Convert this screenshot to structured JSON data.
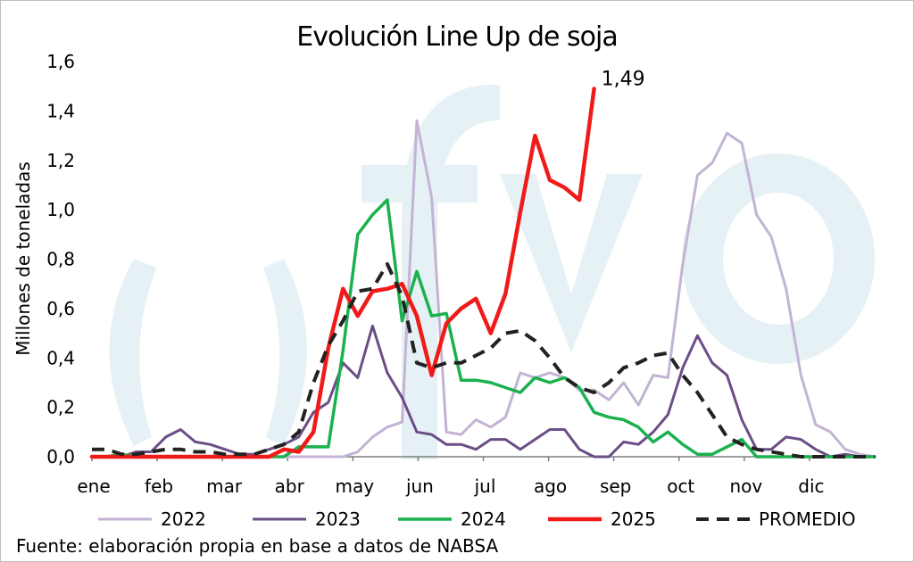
{
  "chart_data": {
    "type": "line",
    "title": "Evolución Line Up de soja",
    "ylabel": "Millones de toneladas",
    "xlabel": "",
    "source": "Fuente: elaboración propia en base a datos de NABSA",
    "ylim": [
      0,
      1.6
    ],
    "yticks": [
      "0,0",
      "0,2",
      "0,4",
      "0,6",
      "0,8",
      "1,0",
      "1,2",
      "1,4",
      "1,6"
    ],
    "months": [
      "ene",
      "feb",
      "mar",
      "abr",
      "may",
      "jun",
      "jul",
      "ago",
      "sep",
      "oct",
      "nov",
      "dic"
    ],
    "annotation": {
      "text": "1,49",
      "series": "2025"
    },
    "legend_position": "bottom",
    "grid": false,
    "series": [
      {
        "name": "2022",
        "color": "#c3b3d4",
        "dash": false,
        "points": [
          [
            0,
            0
          ],
          [
            1,
            0
          ],
          [
            2,
            0
          ],
          [
            3,
            0
          ],
          [
            4,
            0
          ],
          [
            5,
            0
          ],
          [
            6,
            0
          ],
          [
            7,
            0
          ],
          [
            8,
            0
          ],
          [
            9,
            0
          ],
          [
            10,
            0
          ],
          [
            11,
            0
          ],
          [
            12,
            0
          ],
          [
            13,
            0
          ],
          [
            14,
            0
          ],
          [
            15,
            0
          ],
          [
            16,
            0
          ],
          [
            17,
            0
          ],
          [
            18,
            0.02
          ],
          [
            19,
            0.08
          ],
          [
            20,
            0.12
          ],
          [
            21,
            0.14
          ],
          [
            22,
            1.36
          ],
          [
            23,
            1.05
          ],
          [
            24,
            0.1
          ],
          [
            25,
            0.09
          ],
          [
            26,
            0.15
          ],
          [
            27,
            0.12
          ],
          [
            28,
            0.16
          ],
          [
            29,
            0.34
          ],
          [
            30,
            0.32
          ],
          [
            31,
            0.34
          ],
          [
            32,
            0.32
          ],
          [
            33,
            0.27
          ],
          [
            34,
            0.27
          ],
          [
            35,
            0.23
          ],
          [
            36,
            0.3
          ],
          [
            37,
            0.21
          ],
          [
            38,
            0.33
          ],
          [
            39,
            0.32
          ],
          [
            40,
            0.78
          ],
          [
            41,
            1.14
          ],
          [
            42,
            1.19
          ],
          [
            43,
            1.31
          ],
          [
            44,
            1.27
          ],
          [
            45,
            0.98
          ],
          [
            46,
            0.89
          ],
          [
            47,
            0.68
          ],
          [
            48,
            0.33
          ],
          [
            49,
            0.13
          ],
          [
            50,
            0.1
          ],
          [
            51,
            0.03
          ],
          [
            52,
            0.01
          ],
          [
            53,
            0
          ]
        ]
      },
      {
        "name": "2023",
        "color": "#6b4e86",
        "dash": false,
        "points": [
          [
            0,
            0
          ],
          [
            1,
            0
          ],
          [
            2,
            0
          ],
          [
            3,
            0.02
          ],
          [
            4,
            0.02
          ],
          [
            5,
            0.08
          ],
          [
            6,
            0.11
          ],
          [
            7,
            0.06
          ],
          [
            8,
            0.05
          ],
          [
            9,
            0.03
          ],
          [
            10,
            0.01
          ],
          [
            11,
            0.01
          ],
          [
            12,
            0.03
          ],
          [
            13,
            0.05
          ],
          [
            14,
            0.08
          ],
          [
            15,
            0.18
          ],
          [
            16,
            0.22
          ],
          [
            17,
            0.38
          ],
          [
            18,
            0.32
          ],
          [
            19,
            0.53
          ],
          [
            20,
            0.34
          ],
          [
            21,
            0.24
          ],
          [
            22,
            0.1
          ],
          [
            23,
            0.09
          ],
          [
            24,
            0.05
          ],
          [
            25,
            0.05
          ],
          [
            26,
            0.03
          ],
          [
            27,
            0.07
          ],
          [
            28,
            0.07
          ],
          [
            29,
            0.03
          ],
          [
            30,
            0.07
          ],
          [
            31,
            0.11
          ],
          [
            32,
            0.11
          ],
          [
            33,
            0.03
          ],
          [
            34,
            0
          ],
          [
            35,
            0
          ],
          [
            36,
            0.06
          ],
          [
            37,
            0.05
          ],
          [
            38,
            0.1
          ],
          [
            39,
            0.17
          ],
          [
            40,
            0.36
          ],
          [
            41,
            0.49
          ],
          [
            42,
            0.38
          ],
          [
            43,
            0.33
          ],
          [
            44,
            0.15
          ],
          [
            45,
            0.03
          ],
          [
            46,
            0.03
          ],
          [
            47,
            0.08
          ],
          [
            48,
            0.07
          ],
          [
            49,
            0.03
          ],
          [
            50,
            0
          ],
          [
            51,
            0.01
          ],
          [
            52,
            0
          ],
          [
            53,
            0
          ]
        ]
      },
      {
        "name": "2024",
        "color": "#1ab14e",
        "dash": false,
        "points": [
          [
            0,
            0
          ],
          [
            1,
            0
          ],
          [
            2,
            0.01
          ],
          [
            3,
            0
          ],
          [
            4,
            0
          ],
          [
            5,
            0
          ],
          [
            6,
            0
          ],
          [
            7,
            0
          ],
          [
            8,
            0
          ],
          [
            9,
            0
          ],
          [
            10,
            0
          ],
          [
            11,
            0
          ],
          [
            12,
            0
          ],
          [
            13,
            0
          ],
          [
            14,
            0.04
          ],
          [
            15,
            0.04
          ],
          [
            16,
            0.04
          ],
          [
            17,
            0.43
          ],
          [
            18,
            0.9
          ],
          [
            19,
            0.98
          ],
          [
            20,
            1.04
          ],
          [
            21,
            0.55
          ],
          [
            22,
            0.75
          ],
          [
            23,
            0.57
          ],
          [
            24,
            0.58
          ],
          [
            25,
            0.31
          ],
          [
            26,
            0.31
          ],
          [
            27,
            0.3
          ],
          [
            28,
            0.28
          ],
          [
            29,
            0.26
          ],
          [
            30,
            0.32
          ],
          [
            31,
            0.3
          ],
          [
            32,
            0.32
          ],
          [
            33,
            0.28
          ],
          [
            34,
            0.18
          ],
          [
            35,
            0.16
          ],
          [
            36,
            0.15
          ],
          [
            37,
            0.12
          ],
          [
            38,
            0.06
          ],
          [
            39,
            0.1
          ],
          [
            40,
            0.05
          ],
          [
            41,
            0.01
          ],
          [
            42,
            0.01
          ],
          [
            43,
            0.04
          ],
          [
            44,
            0.07
          ],
          [
            45,
            0
          ],
          [
            46,
            0
          ],
          [
            47,
            0
          ],
          [
            48,
            0
          ],
          [
            49,
            0
          ],
          [
            50,
            0
          ],
          [
            51,
            0
          ],
          [
            52,
            0
          ],
          [
            53,
            0
          ]
        ]
      },
      {
        "name": "2025",
        "color": "#f01a1a",
        "dash": false,
        "points": [
          [
            0,
            0
          ],
          [
            1,
            0
          ],
          [
            2,
            0
          ],
          [
            3,
            0
          ],
          [
            4,
            0
          ],
          [
            5,
            0
          ],
          [
            6,
            0
          ],
          [
            7,
            0
          ],
          [
            8,
            0
          ],
          [
            9,
            0
          ],
          [
            10,
            0
          ],
          [
            11,
            0
          ],
          [
            12,
            0
          ],
          [
            13,
            0.03
          ],
          [
            14,
            0.02
          ],
          [
            15,
            0.1
          ],
          [
            16,
            0.44
          ],
          [
            17,
            0.68
          ],
          [
            18,
            0.57
          ],
          [
            19,
            0.67
          ],
          [
            20,
            0.68
          ],
          [
            21,
            0.7
          ],
          [
            22,
            0.57
          ],
          [
            23,
            0.33
          ],
          [
            24,
            0.54
          ],
          [
            25,
            0.6
          ],
          [
            26,
            0.64
          ],
          [
            27,
            0.5
          ],
          [
            28,
            0.66
          ],
          [
            29,
            0.99
          ],
          [
            30,
            1.3
          ],
          [
            31,
            1.12
          ],
          [
            32,
            1.09
          ],
          [
            33,
            1.04
          ],
          [
            34,
            1.49
          ]
        ]
      },
      {
        "name": "PROMEDIO",
        "color": "#222222",
        "dash": true,
        "points": [
          [
            0,
            0.03
          ],
          [
            1,
            0.03
          ],
          [
            2,
            0.01
          ],
          [
            3,
            0.01
          ],
          [
            4,
            0.02
          ],
          [
            5,
            0.03
          ],
          [
            6,
            0.03
          ],
          [
            7,
            0.02
          ],
          [
            8,
            0.02
          ],
          [
            9,
            0.01
          ],
          [
            10,
            0.01
          ],
          [
            11,
            0.01
          ],
          [
            12,
            0.03
          ],
          [
            13,
            0.05
          ],
          [
            14,
            0.1
          ],
          [
            15,
            0.3
          ],
          [
            16,
            0.45
          ],
          [
            17,
            0.55
          ],
          [
            18,
            0.67
          ],
          [
            19,
            0.68
          ],
          [
            20,
            0.78
          ],
          [
            21,
            0.65
          ],
          [
            22,
            0.38
          ],
          [
            23,
            0.36
          ],
          [
            24,
            0.38
          ],
          [
            25,
            0.38
          ],
          [
            26,
            0.41
          ],
          [
            27,
            0.44
          ],
          [
            28,
            0.5
          ],
          [
            29,
            0.51
          ],
          [
            30,
            0.47
          ],
          [
            31,
            0.4
          ],
          [
            32,
            0.32
          ],
          [
            33,
            0.28
          ],
          [
            34,
            0.26
          ],
          [
            35,
            0.3
          ],
          [
            36,
            0.36
          ],
          [
            37,
            0.38
          ],
          [
            38,
            0.41
          ],
          [
            39,
            0.42
          ],
          [
            40,
            0.33
          ],
          [
            41,
            0.26
          ],
          [
            42,
            0.17
          ],
          [
            43,
            0.08
          ],
          [
            44,
            0.05
          ],
          [
            45,
            0.03
          ],
          [
            46,
            0.02
          ],
          [
            47,
            0.01
          ],
          [
            48,
            0
          ],
          [
            49,
            0
          ],
          [
            50,
            0
          ],
          [
            51,
            0
          ],
          [
            52,
            0
          ],
          [
            53,
            0
          ]
        ]
      }
    ]
  },
  "watermark": "fyo"
}
